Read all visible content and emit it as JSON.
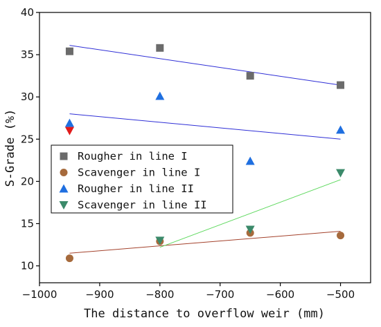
{
  "chart_data": {
    "type": "scatter",
    "xlabel": "The distance to overflow weir (mm)",
    "ylabel": "S-Grade (%)",
    "xlim": [
      -1000,
      -450
    ],
    "ylim": [
      8,
      40
    ],
    "xticks": [
      -1000,
      -900,
      -800,
      -700,
      -600,
      -500
    ],
    "yticks": [
      10,
      15,
      20,
      25,
      30,
      35,
      40
    ],
    "grid": false,
    "legend_position": "center-left",
    "series": [
      {
        "name": "Rougher in line I",
        "marker": "square",
        "color": "#6b6b6b",
        "x": [
          -950,
          -800,
          -650,
          -500
        ],
        "y": [
          35.4,
          35.8,
          32.5,
          31.4
        ],
        "fit": {
          "x": [
            -950,
            -500
          ],
          "y": [
            36.1,
            31.4
          ],
          "color": "#2d2dd6"
        }
      },
      {
        "name": "Scavenger in line I",
        "marker": "circle",
        "color": "#a66a3c",
        "x": [
          -950,
          -800,
          -650,
          -500
        ],
        "y": [
          10.9,
          12.9,
          13.9,
          13.6
        ],
        "fit": {
          "x": [
            -950,
            -500
          ],
          "y": [
            11.5,
            14.1
          ],
          "color": "#a3402a"
        }
      },
      {
        "name": "Rougher in line II",
        "marker": "triangle-up",
        "color": "#1f6fe0",
        "x": [
          -950,
          -800,
          -650,
          -500
        ],
        "y": [
          26.9,
          30.1,
          22.4,
          26.1
        ],
        "fit": {
          "x": [
            -950,
            -500
          ],
          "y": [
            28.0,
            25.0
          ],
          "color": "#2d2dd6"
        }
      },
      {
        "name": "Scavenger in line II",
        "marker": "triangle-down",
        "color": "#3b8a6a",
        "x": [
          -800,
          -650,
          -500
        ],
        "y": [
          13.0,
          14.3,
          21.0
        ],
        "fit": {
          "x": [
            -800,
            -500
          ],
          "y": [
            12.2,
            20.2
          ],
          "color": "#5bd85b"
        }
      }
    ],
    "extra_points": [
      {
        "marker": "triangle-down",
        "color": "#e11b1b",
        "x": -950,
        "y": 26.0
      }
    ]
  }
}
